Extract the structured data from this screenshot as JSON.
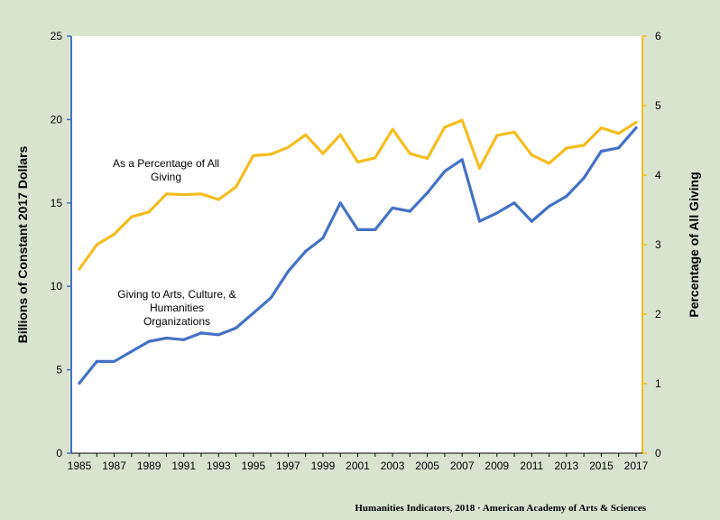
{
  "chart_data": {
    "type": "line",
    "x": [
      1985,
      1986,
      1987,
      1988,
      1989,
      1990,
      1991,
      1992,
      1993,
      1994,
      1995,
      1996,
      1997,
      1998,
      1999,
      2000,
      2001,
      2002,
      2003,
      2004,
      2005,
      2006,
      2007,
      2008,
      2009,
      2010,
      2011,
      2012,
      2013,
      2014,
      2015,
      2016,
      2017
    ],
    "x_tick_labels": [
      "1985",
      "1987",
      "1989",
      "1991",
      "1993",
      "1995",
      "1997",
      "1999",
      "2001",
      "2003",
      "2005",
      "2007",
      "2009",
      "2011",
      "2013",
      "2015",
      "2017"
    ],
    "y_left_ticks": [
      "0",
      "5",
      "10",
      "15",
      "20",
      "25"
    ],
    "y_right_ticks": [
      "0",
      "1",
      "2",
      "3",
      "4",
      "5",
      "6"
    ],
    "ylim_left": [
      0,
      25
    ],
    "ylim_right": [
      0,
      6
    ],
    "ylabel_left": "Billions of Constant 2017 Dollars",
    "ylabel_right": "Percentage of All Giving",
    "grid": false,
    "series": [
      {
        "axis": "left",
        "color": "#4472c4",
        "label_lines": [
          "Giving to Arts, Culture, &",
          "Humanities",
          "Organizations"
        ],
        "values": [
          4.2,
          5.5,
          5.5,
          6.1,
          6.7,
          6.9,
          6.8,
          7.2,
          7.1,
          7.5,
          8.4,
          9.3,
          10.9,
          12.1,
          12.9,
          15.0,
          13.4,
          13.4,
          14.7,
          14.5,
          15.6,
          16.9,
          17.6,
          13.9,
          14.4,
          15.0,
          13.9,
          14.8,
          15.4,
          16.5,
          18.1,
          18.3,
          19.5
        ]
      },
      {
        "axis": "right",
        "color": "#f5bd1f",
        "label_lines": [
          "As a Percentage of All",
          "Giving"
        ],
        "values": [
          2.65,
          3.0,
          3.15,
          3.4,
          3.47,
          3.73,
          3.72,
          3.73,
          3.65,
          3.83,
          4.28,
          4.3,
          4.4,
          4.58,
          4.31,
          4.58,
          4.19,
          4.25,
          4.66,
          4.31,
          4.24,
          4.69,
          4.79,
          4.1,
          4.57,
          4.62,
          4.29,
          4.17,
          4.39,
          4.43,
          4.68,
          4.6,
          4.76
        ]
      }
    ]
  },
  "source_text": "Humanities Indicators, 2018 · American Academy of Arts & Sciences",
  "colors": {
    "background": "#d8e4cf",
    "plot_background": "#ffffff",
    "left_axis": "#4472c4",
    "right_axis": "#f5bd1f"
  }
}
